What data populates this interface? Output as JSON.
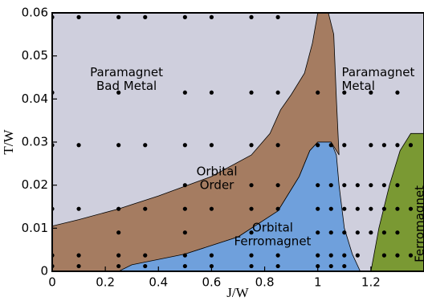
{
  "chart_data": {
    "type": "phase-diagram",
    "x_label": "J/W",
    "y_label": "T/W",
    "xlim": [
      0,
      1.4
    ],
    "ylim": [
      0,
      0.06
    ],
    "xticks": [
      0,
      0.2,
      0.4,
      0.6,
      0.8,
      1,
      1.2
    ],
    "yticks": [
      0,
      0.01,
      0.02,
      0.03,
      0.04,
      0.05,
      0.06
    ],
    "background_color": "#cfcfdd",
    "regions": [
      {
        "label": [
          "Orbital",
          "Order"
        ],
        "color": "#a57c61",
        "x": [
          0,
          0,
          0.1,
          0.25,
          0.4,
          0.6,
          0.75,
          0.82,
          0.86,
          0.9,
          0.95,
          0.98,
          1.0,
          1.04,
          1.06,
          1.07,
          1.08,
          1.05,
          1.0,
          0.97,
          0.93,
          0.85,
          0.7,
          0.5,
          0.25,
          0
        ],
        "y": [
          0,
          0.0105,
          0.012,
          0.0145,
          0.0175,
          0.022,
          0.027,
          0.032,
          0.0375,
          0.041,
          0.046,
          0.053,
          0.06,
          0.06,
          0.055,
          0.04,
          0.027,
          0.03,
          0.03,
          0.028,
          0.022,
          0.014,
          0.008,
          0.004,
          0,
          0
        ]
      },
      {
        "label": [
          "Orbital",
          "Ferromagnet"
        ],
        "color": "#6fa0dc",
        "x": [
          0.25,
          0.3,
          0.5,
          0.7,
          0.85,
          0.93,
          0.97,
          1.0,
          1.05,
          1.07,
          1.08,
          1.1,
          1.13,
          1.16
        ],
        "y": [
          0,
          0.0015,
          0.004,
          0.008,
          0.014,
          0.022,
          0.028,
          0.03,
          0.03,
          0.027,
          0.02,
          0.01,
          0.004,
          0
        ]
      },
      {
        "label": [
          "Ferromagnet"
        ],
        "color": "#7a9933",
        "x": [
          1.2,
          1.23,
          1.27,
          1.31,
          1.35,
          1.4,
          1.4
        ],
        "y": [
          0,
          0.01,
          0.02,
          0.028,
          0.032,
          0.032,
          0
        ]
      }
    ],
    "region_texts": [
      [
        "Paramagnet",
        "Bad Metal"
      ],
      [
        "Paramagnet",
        "Metal"
      ]
    ],
    "points": {
      "color": "#000000",
      "x": [
        0,
        0.1,
        0.25,
        0.35,
        0.5,
        0.6,
        0.75,
        0.85,
        0,
        0.25,
        0.5,
        0.6,
        0.75,
        0.85,
        1,
        1.1,
        1.2,
        1.3,
        0,
        0.1,
        0.25,
        0.35,
        0.5,
        0.6,
        0.75,
        0.85,
        1,
        1.05,
        1.1,
        1.2,
        1.25,
        1.3,
        1.35,
        0.5,
        0.75,
        0.85,
        1,
        1.05,
        1.1,
        1.15,
        1.2,
        1.25,
        1.3,
        0,
        0.1,
        0.25,
        0.35,
        0.5,
        0.6,
        0.75,
        0.85,
        1,
        1.05,
        1.1,
        1.15,
        1.2,
        1.25,
        1.3,
        1.35,
        0.25,
        0.5,
        0.75,
        1,
        1.05,
        1.1,
        1.15,
        1.2,
        1.25,
        1.3,
        0,
        0.1,
        0.25,
        0.35,
        0.5,
        0.6,
        0.75,
        0.85,
        1,
        1.05,
        1.1,
        1.15,
        1.25,
        1.3,
        1.35,
        0,
        0.1,
        0.25,
        0.35,
        0.5,
        0.6,
        0.75,
        0.85,
        1,
        1.05,
        1.1
      ],
      "y": [
        0.059,
        0.059,
        0.059,
        0.059,
        0.059,
        0.059,
        0.059,
        0.059,
        0.0415,
        0.0415,
        0.0415,
        0.0415,
        0.0415,
        0.0415,
        0.0415,
        0.0415,
        0.0415,
        0.0415,
        0.0293,
        0.0293,
        0.0293,
        0.0293,
        0.0293,
        0.0293,
        0.0293,
        0.0293,
        0.0293,
        0.0293,
        0.0293,
        0.0293,
        0.0293,
        0.0293,
        0.0293,
        0.02,
        0.02,
        0.02,
        0.02,
        0.02,
        0.02,
        0.02,
        0.02,
        0.02,
        0.02,
        0.0145,
        0.0145,
        0.0145,
        0.0145,
        0.0145,
        0.0145,
        0.0145,
        0.0145,
        0.0145,
        0.0145,
        0.0145,
        0.0145,
        0.0145,
        0.0145,
        0.0145,
        0.0145,
        0.009,
        0.009,
        0.009,
        0.009,
        0.009,
        0.009,
        0.009,
        0.009,
        0.009,
        0.009,
        0.0037,
        0.0037,
        0.0037,
        0.0037,
        0.0037,
        0.0037,
        0.0037,
        0.0037,
        0.0037,
        0.0037,
        0.0037,
        0.0037,
        0.0037,
        0.0037,
        0.0037,
        0.0012,
        0.0012,
        0.0012,
        0.0012,
        0.0012,
        0.0012,
        0.0012,
        0.0012,
        0.0012,
        0.0012,
        0.0012
      ]
    }
  }
}
